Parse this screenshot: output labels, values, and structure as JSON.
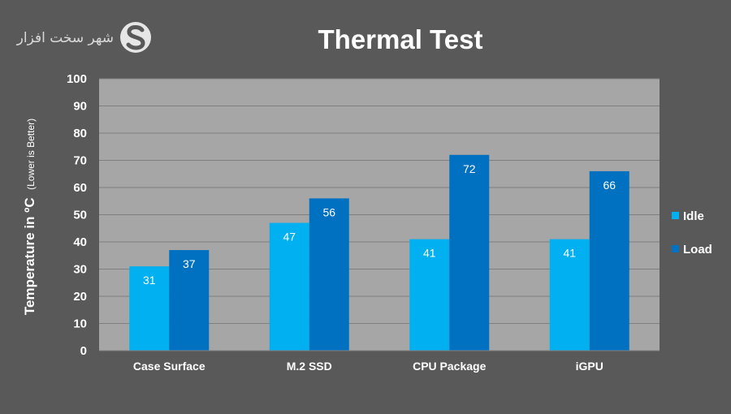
{
  "branding": {
    "logo_text": "شهر سخت افزار"
  },
  "chart_data": {
    "type": "bar",
    "title": "Thermal Test",
    "ylabel": "Temperature in ºC",
    "ylabel_note": "(Lower is Better)",
    "xlabel": "",
    "categories": [
      "Case Surface",
      "M.2 SSD",
      "CPU Package",
      "iGPU"
    ],
    "series": [
      {
        "name": "Idle",
        "values": [
          31,
          47,
          41,
          41
        ],
        "color": "#00b0f0"
      },
      {
        "name": "Load",
        "values": [
          37,
          56,
          72,
          66
        ],
        "color": "#0070c0"
      }
    ],
    "ylim": [
      0,
      100
    ],
    "yticks": [
      0,
      10,
      20,
      30,
      40,
      50,
      60,
      70,
      80,
      90,
      100
    ],
    "grid": true,
    "legend_position": "right",
    "plot_background": "#a6a6a6",
    "background": "#595959"
  }
}
